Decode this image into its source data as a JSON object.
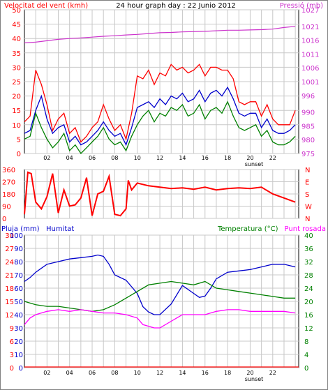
{
  "page_title": "24 hour graph day : 22 Junio 2012",
  "colors": {
    "wind": "#ff0000",
    "gust": "#cc0000",
    "avg_wind": "#0000cc",
    "pressure": "#cc33cc",
    "direction": "#ff0000",
    "rain": "#ff0000",
    "humidity": "#0000cc",
    "temperature": "#008000",
    "dewpoint": "#ff00ff",
    "grid": "#c8c8c8",
    "frame": "#000000"
  },
  "chart_data": [
    {
      "type": "line",
      "title": "24 hour graph day : 22 Junio 2012",
      "ylabel": "Velocitat del vent (kmh)",
      "y2label": "Pressió (mb)",
      "x_tick_labels": [
        "02",
        "04",
        "06",
        "08",
        "10",
        "12",
        "14",
        "16",
        "18",
        "20",
        "22"
      ],
      "x_marker_label": "sunset",
      "ylim": [
        0,
        50
      ],
      "y_ticks": [
        0,
        5,
        10,
        15,
        20,
        25,
        30,
        35,
        40,
        45,
        50
      ],
      "y2lim": [
        975,
        1027
      ],
      "y2_ticks": [
        975,
        980,
        985,
        990,
        996,
        1001,
        1006,
        1011,
        1016,
        1021,
        1027
      ],
      "grid": true,
      "hour_range": [
        0,
        24.3
      ],
      "series": [
        {
          "key": "gust",
          "x": [
            0,
            0.5,
            1,
            1.5,
            2,
            2.5,
            3,
            3.5,
            4,
            4.5,
            5,
            5.5,
            6,
            6.5,
            7,
            7.5,
            8,
            8.5,
            9,
            9.5,
            10,
            10.5,
            11,
            11.5,
            12,
            12.5,
            13,
            13.5,
            14,
            14.5,
            15,
            15.5,
            16,
            16.5,
            17,
            17.5,
            18,
            18.5,
            19,
            19.5,
            20,
            20.5,
            21,
            21.5,
            22,
            22.5,
            23,
            23.5,
            24
          ],
          "values": [
            11,
            13,
            29,
            24,
            17,
            8,
            12,
            14,
            7,
            9,
            4,
            6,
            9,
            11,
            17,
            12,
            8,
            10,
            5,
            14,
            27,
            26,
            29,
            24,
            28,
            27,
            31,
            29,
            30,
            28,
            29,
            31,
            27,
            30,
            30,
            29,
            29,
            26,
            18,
            17,
            18,
            18,
            13,
            17,
            12,
            10,
            10,
            10,
            15
          ]
        },
        {
          "key": "avg_wind",
          "x": [
            0,
            0.5,
            1,
            1.5,
            2,
            2.5,
            3,
            3.5,
            4,
            4.5,
            5,
            5.5,
            6,
            6.5,
            7,
            7.5,
            8,
            8.5,
            9,
            9.5,
            10,
            10.5,
            11,
            11.5,
            12,
            12.5,
            13,
            13.5,
            14,
            14.5,
            15,
            15.5,
            16,
            16.5,
            17,
            17.5,
            18,
            18.5,
            19,
            19.5,
            20,
            20.5,
            21,
            21.5,
            22,
            22.5,
            23,
            23.5,
            24
          ],
          "values": [
            7,
            8,
            15,
            20,
            12,
            7,
            9,
            10,
            4,
            6,
            3,
            4,
            6,
            8,
            11,
            8,
            6,
            7,
            3,
            9,
            16,
            17,
            18,
            16,
            19,
            17,
            20,
            19,
            21,
            18,
            19,
            22,
            18,
            21,
            22,
            20,
            23,
            19,
            14,
            13,
            14,
            14,
            9,
            12,
            8,
            7,
            7,
            8,
            10
          ]
        },
        {
          "key": "wind",
          "x": [
            0,
            0.5,
            1,
            1.5,
            2,
            2.5,
            3,
            3.5,
            4,
            4.5,
            5,
            5.5,
            6,
            6.5,
            7,
            7.5,
            8,
            8.5,
            9,
            9.5,
            10,
            10.5,
            11,
            11.5,
            12,
            12.5,
            13,
            13.5,
            14,
            14.5,
            15,
            15.5,
            16,
            16.5,
            17,
            17.5,
            18,
            18.5,
            19,
            19.5,
            20,
            20.5,
            21,
            21.5,
            22,
            22.5,
            23,
            23.5,
            24
          ],
          "values": [
            5,
            6,
            14,
            9,
            5,
            2,
            4,
            7,
            1,
            3,
            0,
            2,
            4,
            6,
            9,
            5,
            3,
            4,
            1,
            6,
            10,
            13,
            15,
            11,
            14,
            13,
            16,
            15,
            17,
            13,
            14,
            17,
            12,
            15,
            16,
            14,
            18,
            13,
            9,
            8,
            9,
            10,
            6,
            8,
            4,
            3,
            3,
            4,
            6
          ]
        },
        {
          "key": "pressure",
          "x": [
            0,
            1,
            2,
            3,
            4,
            5,
            6,
            7,
            8,
            9,
            10,
            11,
            12,
            13,
            14,
            15,
            16,
            17,
            18,
            19,
            20,
            21,
            22,
            23,
            24
          ],
          "values": [
            1015,
            1015.3,
            1015.8,
            1016.3,
            1016.6,
            1016.8,
            1017.1,
            1017.4,
            1017.6,
            1017.9,
            1018.1,
            1018.4,
            1018.7,
            1018.8,
            1019,
            1019.1,
            1019.2,
            1019.4,
            1019.6,
            1019.6,
            1019.7,
            1019.8,
            1020,
            1020.6,
            1021
          ]
        }
      ]
    },
    {
      "type": "line",
      "ylabel": "Direcció",
      "ylim": [
        0,
        360
      ],
      "y_ticks": [
        0,
        90,
        180,
        270,
        360
      ],
      "y2_tick_labels": [
        "N",
        "W",
        "S",
        "E",
        "N"
      ],
      "grid": true,
      "series": [
        {
          "key": "direction",
          "x": [
            0,
            0.3,
            0.6,
            1,
            1.5,
            2,
            2.5,
            3,
            3.5,
            4,
            4.5,
            5,
            5.5,
            6,
            6.5,
            7,
            7.5,
            8,
            8.5,
            9,
            9.2,
            9.5,
            10,
            11,
            12,
            13,
            14,
            15,
            16,
            17,
            18,
            19,
            20,
            21,
            22,
            23,
            24
          ],
          "values": [
            30,
            340,
            330,
            120,
            70,
            160,
            330,
            40,
            210,
            90,
            100,
            150,
            300,
            20,
            180,
            200,
            310,
            30,
            20,
            70,
            280,
            210,
            260,
            240,
            230,
            220,
            225,
            215,
            230,
            210,
            220,
            225,
            220,
            230,
            180,
            150,
            120
          ]
        }
      ]
    },
    {
      "type": "line",
      "ylabel": "Pluja (mm)",
      "y_label2": "Humitat",
      "y2label": "Temperatura (°C)",
      "y2label_b": "Punt rosada",
      "x_tick_labels": [
        "02",
        "04",
        "06",
        "08",
        "10",
        "12",
        "14",
        "16",
        "18",
        "20",
        "22"
      ],
      "x_marker_label": "sunset",
      "rain_ticks": [
        0,
        3,
        6,
        9,
        12,
        15,
        18,
        21,
        24,
        27,
        30
      ],
      "humidity_ticks": [
        0,
        10,
        20,
        30,
        40,
        50,
        60,
        70,
        80,
        90,
        100
      ],
      "temp_ticks": [
        0,
        4,
        8,
        12,
        16,
        20,
        24,
        28,
        32,
        36,
        40
      ],
      "grid": true,
      "series": [
        {
          "key": "humidity",
          "x": [
            0,
            0.5,
            1,
            2,
            3,
            4,
            5,
            6,
            6.5,
            7,
            7.5,
            8,
            9,
            10,
            10.5,
            11,
            11.5,
            12,
            13,
            14,
            15,
            15.5,
            16,
            16.5,
            17,
            18,
            19,
            20,
            21,
            22,
            23,
            24
          ],
          "values": [
            65,
            68,
            72,
            78,
            80,
            82,
            83,
            84,
            85,
            84,
            78,
            70,
            66,
            56,
            46,
            42,
            40,
            40,
            48,
            62,
            56,
            53,
            54,
            60,
            67,
            72,
            73,
            74,
            76,
            78,
            78,
            76
          ]
        },
        {
          "key": "temperature",
          "x": [
            0,
            1,
            2,
            3,
            4,
            5,
            6,
            7,
            8,
            9,
            10,
            11,
            12,
            13,
            14,
            15,
            16,
            17,
            18,
            19,
            20,
            21,
            22,
            23,
            24
          ],
          "values": [
            20,
            19,
            18.5,
            18.5,
            18,
            17.5,
            17,
            17.5,
            19,
            21,
            23,
            25,
            25.5,
            26,
            25.5,
            25,
            26,
            24,
            23.5,
            23,
            22.5,
            22,
            21.5,
            21,
            21
          ]
        },
        {
          "key": "dewpoint",
          "x": [
            0,
            0.5,
            1,
            2,
            3,
            4,
            5,
            6,
            7,
            8,
            9,
            10,
            10.5,
            11,
            11.5,
            12,
            13,
            14,
            15,
            16,
            17,
            18,
            19,
            20,
            21,
            22,
            23,
            24
          ],
          "values": [
            13,
            15,
            16,
            17,
            17.5,
            17,
            17.5,
            17,
            16.5,
            16.5,
            16,
            15,
            13,
            12.5,
            12,
            12,
            14,
            16,
            16,
            16,
            17,
            17.5,
            17.5,
            17,
            17,
            17,
            17,
            16.5
          ]
        },
        {
          "key": "rain",
          "x": [
            0,
            24.3
          ],
          "values": [
            0,
            0
          ]
        }
      ]
    }
  ]
}
